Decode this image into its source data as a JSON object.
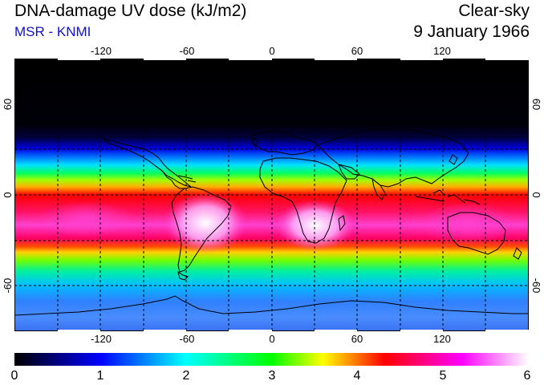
{
  "header": {
    "title": "DNA-damage UV dose (kJ/m2)",
    "subtitle": "MSR - KNMI",
    "condition": "Clear-sky",
    "date": "9 January 1966"
  },
  "map": {
    "lon_labels": [
      "-120",
      "-60",
      "0",
      "60",
      "120"
    ],
    "lat_labels_left": [
      "60",
      "0",
      "-60"
    ],
    "lat_labels_right": [
      "60",
      "0",
      "-60"
    ]
  },
  "colorbar": {
    "ticks": [
      "0",
      "1",
      "2",
      "3",
      "4",
      "5",
      "6"
    ],
    "min": 0,
    "max": 6,
    "colors": [
      "#000000",
      "#0000ff",
      "#00ffff",
      "#00ff00",
      "#ffff00",
      "#ff0000",
      "#ff00ff",
      "#ffffff"
    ]
  },
  "colors": {
    "subtitle": "#1010d0",
    "coastline": "#000000",
    "grid": "#000000"
  }
}
